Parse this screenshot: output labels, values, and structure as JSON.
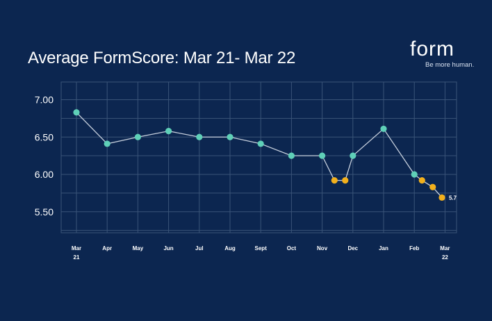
{
  "header": {
    "title": "Average FormScore: Mar 21- Mar 22",
    "logo_text": "form",
    "logo_tagline": "Be more human."
  },
  "chart_data": {
    "type": "line",
    "title": "Average FormScore: Mar 21- Mar 22",
    "xlabel": "",
    "ylabel": "",
    "ylim": [
      5.2,
      7.3
    ],
    "yticks": [
      "7.00",
      "6.50",
      "6.00",
      "5.50"
    ],
    "ytick_values": [
      7.0,
      6.5,
      6.0,
      5.5
    ],
    "xticks": [
      {
        "t": 0,
        "line1": "Mar",
        "line2": "21"
      },
      {
        "t": 1,
        "line1": "Apr",
        "line2": ""
      },
      {
        "t": 2,
        "line1": "May",
        "line2": ""
      },
      {
        "t": 3,
        "line1": "Jun",
        "line2": ""
      },
      {
        "t": 4,
        "line1": "Jul",
        "line2": ""
      },
      {
        "t": 5,
        "line1": "Aug",
        "line2": ""
      },
      {
        "t": 6,
        "line1": "Sept",
        "line2": ""
      },
      {
        "t": 7,
        "line1": "Oct",
        "line2": ""
      },
      {
        "t": 8,
        "line1": "Nov",
        "line2": ""
      },
      {
        "t": 9,
        "line1": "Dec",
        "line2": ""
      },
      {
        "t": 10,
        "line1": "Jan",
        "line2": ""
      },
      {
        "t": 11,
        "line1": "Feb",
        "line2": ""
      },
      {
        "t": 12,
        "line1": "Mar",
        "line2": "22"
      }
    ],
    "points": [
      {
        "t": 0,
        "y": 6.83,
        "color": "teal"
      },
      {
        "t": 1,
        "y": 6.41,
        "color": "teal"
      },
      {
        "t": 2,
        "y": 6.5,
        "color": "teal"
      },
      {
        "t": 3,
        "y": 6.58,
        "color": "teal"
      },
      {
        "t": 4,
        "y": 6.5,
        "color": "teal"
      },
      {
        "t": 5,
        "y": 6.5,
        "color": "teal"
      },
      {
        "t": 6,
        "y": 6.41,
        "color": "teal"
      },
      {
        "t": 7,
        "y": 6.25,
        "color": "teal"
      },
      {
        "t": 8,
        "y": 6.25,
        "color": "teal"
      },
      {
        "t": 8.4,
        "y": 5.92,
        "color": "gold"
      },
      {
        "t": 8.75,
        "y": 5.92,
        "color": "gold"
      },
      {
        "t": 9,
        "y": 6.25,
        "color": "teal"
      },
      {
        "t": 10,
        "y": 6.61,
        "color": "teal"
      },
      {
        "t": 11,
        "y": 6.0,
        "color": "teal"
      },
      {
        "t": 11.25,
        "y": 5.92,
        "color": "gold"
      },
      {
        "t": 11.6,
        "y": 5.83,
        "color": "gold"
      },
      {
        "t": 11.9,
        "y": 5.69,
        "color": "gold"
      }
    ],
    "data_labels": [
      {
        "point_index": 16,
        "text": "5.7"
      }
    ],
    "colors": {
      "background": "#0c2650",
      "grid": "#3a5478",
      "line": "#c7d0dd",
      "teal": "#5fd0b8",
      "gold": "#f2b01c"
    },
    "grid": true
  }
}
